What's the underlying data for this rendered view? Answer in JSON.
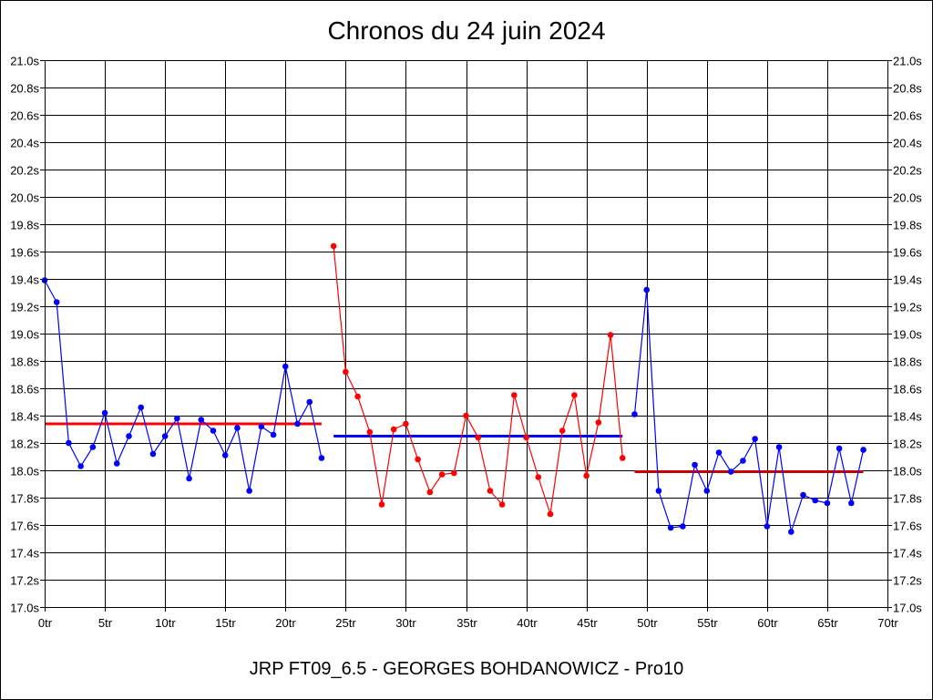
{
  "chart_data": {
    "type": "line",
    "title": "Chronos du 24 juin 2024",
    "footer": "JRP FT09_6.5 - GEORGES BOHDANOWICZ - Pro10",
    "xlim": [
      0,
      70
    ],
    "ylim": [
      17.0,
      21.0
    ],
    "x_ticks": [
      0,
      5,
      10,
      15,
      20,
      25,
      30,
      35,
      40,
      45,
      50,
      55,
      60,
      65,
      70
    ],
    "x_tick_labels": [
      "0tr",
      "5tr",
      "10tr",
      "15tr",
      "20tr",
      "25tr",
      "30tr",
      "35tr",
      "40tr",
      "45tr",
      "50tr",
      "55tr",
      "60tr",
      "65tr",
      "70tr"
    ],
    "y_ticks": [
      17.0,
      17.2,
      17.4,
      17.6,
      17.8,
      18.0,
      18.2,
      18.4,
      18.6,
      18.8,
      19.0,
      19.2,
      19.4,
      19.6,
      19.8,
      20.0,
      20.2,
      20.4,
      20.6,
      20.8,
      21.0
    ],
    "y_tick_labels": [
      "17.0s",
      "17.2s",
      "17.4s",
      "17.6s",
      "17.8s",
      "18.0s",
      "18.2s",
      "18.4s",
      "18.6s",
      "18.8s",
      "19.0s",
      "19.2s",
      "19.4s",
      "19.6s",
      "19.8s",
      "20.0s",
      "20.2s",
      "20.4s",
      "20.6s",
      "20.8s",
      "21.0s"
    ],
    "grid": true,
    "series": [
      {
        "color": "#0000ff",
        "x": [
          0,
          1,
          2,
          3,
          4,
          5,
          6,
          7,
          8,
          9,
          10,
          11,
          12,
          13,
          14,
          15,
          16,
          17,
          18,
          19,
          20,
          21,
          22,
          23
        ],
        "y": [
          19.39,
          19.23,
          18.2,
          18.03,
          18.17,
          18.42,
          18.05,
          18.25,
          18.46,
          18.12,
          18.25,
          18.38,
          17.94,
          18.37,
          18.29,
          18.11,
          18.31,
          17.85,
          18.32,
          18.26,
          18.76,
          18.34,
          18.5,
          18.09
        ]
      },
      {
        "color": "#ff0000",
        "x": [
          24,
          25,
          26,
          27,
          28,
          29,
          30,
          31,
          32,
          33,
          34,
          35,
          36,
          37,
          38,
          39,
          40,
          41,
          42,
          43,
          44,
          45,
          46,
          47,
          48
        ],
        "y": [
          19.64,
          18.72,
          18.54,
          18.28,
          17.75,
          18.3,
          18.34,
          18.08,
          17.84,
          17.97,
          17.98,
          18.4,
          18.24,
          17.85,
          17.75,
          18.55,
          18.24,
          17.95,
          17.68,
          18.29,
          18.55,
          17.96,
          18.35,
          18.99,
          18.09
        ]
      },
      {
        "color": "#0000ff",
        "x": [
          49,
          50,
          51,
          52,
          53,
          54,
          55,
          56,
          57,
          58,
          59,
          60,
          61,
          62,
          63,
          64,
          65,
          66,
          67,
          68
        ],
        "y": [
          18.41,
          19.32,
          17.85,
          17.58,
          17.59,
          18.04,
          17.85,
          18.13,
          17.99,
          18.07,
          18.23,
          17.59,
          18.17,
          17.55,
          17.82,
          17.78,
          17.76,
          18.16,
          17.76,
          18.15
        ]
      }
    ],
    "mean_lines": [
      {
        "color": "#ff0000",
        "x0": 0,
        "x1": 23,
        "y": 18.34
      },
      {
        "color": "#0000ff",
        "x0": 24,
        "x1": 48,
        "y": 18.25
      },
      {
        "color": "#cc0000",
        "x0": 49,
        "x1": 68,
        "y": 17.99
      }
    ]
  }
}
